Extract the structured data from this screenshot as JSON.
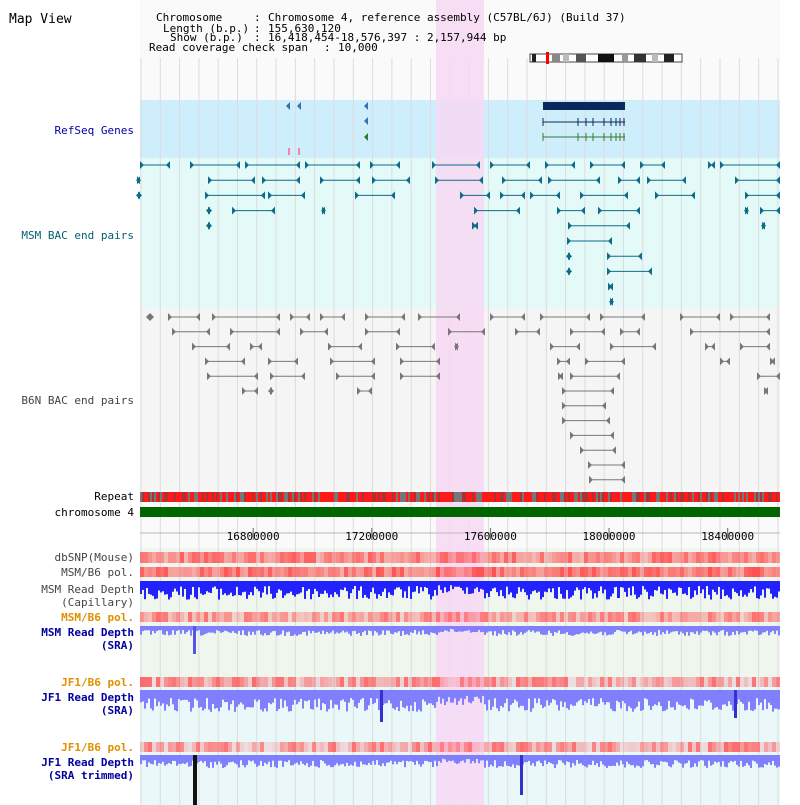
{
  "title": "Map View",
  "info": {
    "chromosome_key": "Chromosome",
    "chromosome_value": "Chromosome 4, reference assembly (C57BL/6J) (Build 37)",
    "length_key": "Length (b.p.)",
    "length_value": "155,630,120",
    "show_key": "Show (b.p.)",
    "show_value": "16,418,454-18,576,397 : 2,157,944 bp",
    "coverage_key": "Read coverage check span",
    "coverage_value": "10,000"
  },
  "tracks": {
    "refseq": "RefSeq Genes",
    "msm_bac": "MSM BAC end pairs",
    "b6n_bac": "B6N BAC end pairs",
    "repeat": "Repeat",
    "chromosome": "chromosome 4",
    "dbsnp": "dbSNP(Mouse)",
    "msm_b6_pol_1": "MSM/B6 pol.",
    "msm_depth_cap_1": "MSM Read Depth",
    "msm_depth_cap_2": "(Capillary)",
    "msm_b6_pol_2": "MSM/B6 pol.",
    "msm_depth_sra_1": "MSM Read Depth",
    "msm_depth_sra_2": "(SRA)",
    "jf1_b6_pol_1": "JF1/B6 pol.",
    "jf1_depth_sra_1": "JF1 Read Depth",
    "jf1_depth_sra_2": "(SRA)",
    "jf1_b6_pol_2": "JF1/B6 pol.",
    "jf1_depth_trim_1": "JF1 Read Depth",
    "jf1_depth_trim_2": "(SRA trimmed)"
  },
  "axis": {
    "ticks": [
      "16800000",
      "17200000",
      "17600000",
      "18000000",
      "18400000"
    ]
  },
  "colors": {
    "refseq_bg": "#cfeefc",
    "msm_bg": "#e4faf8",
    "b6n_bg": "#f5f5f5",
    "highlight": "#f7d8f3",
    "msm_feature": "#0d6c8a",
    "b6n_feature": "#777777",
    "repeat_red": "#ff1a1a",
    "chromosome_green": "#006600",
    "snp_red": "#ff5050",
    "depth_blue": "#2222ff",
    "depth_light_blue": "#8080ff",
    "label_blue": "#0000a0",
    "label_teal": "#006070",
    "label_orange": "#e09000"
  }
}
